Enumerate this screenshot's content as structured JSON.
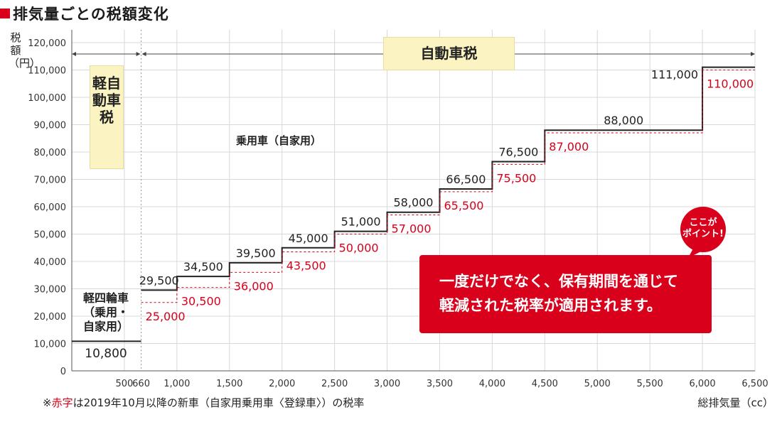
{
  "title": "排気量ごとの税額変化",
  "y_axis_label": "税額（円）",
  "x_axis_label": "総排気量（cc）",
  "footnote_prefix": "※",
  "footnote_red": "赤字",
  "footnote_rest": "は2019年10月以降の新車（自家用乗用車〈登録車〉）の税率",
  "kei_label": "軽自動車税",
  "auto_label": "自動車税",
  "passenger_label": "乗用車（自家用）",
  "mini_label": "軽四輪車（乗用・自家用）",
  "mini_label_lines": [
    "軽四輪車",
    "（乗用・",
    "自家用）"
  ],
  "mini_value": "10,800",
  "callout_lines": [
    "一度だけでなく、保有期間を通じて",
    "軽減された税率が適用されます。"
  ],
  "bubble_lines": [
    "ここが",
    "ポイント!"
  ],
  "colors": {
    "accent": "#d9001b",
    "old_line": "#222222",
    "new_line": "#d9001b",
    "label_box": "#fbf3c1",
    "grid": "#d8d8d8"
  },
  "chart_data": {
    "type": "line",
    "step": true,
    "xlim": [
      0,
      6500
    ],
    "ylim": [
      0,
      120000
    ],
    "x_ticks": [
      500,
      660,
      1000,
      1500,
      2000,
      2500,
      3000,
      3500,
      4000,
      4500,
      5000,
      5500,
      6000,
      6500
    ],
    "x_tick_labels": [
      "500",
      "660",
      "1,000",
      "1,500",
      "2,000",
      "2,500",
      "3,000",
      "3,500",
      "4,000",
      "4,500",
      "5,000",
      "5,500",
      "6,000",
      "6,500"
    ],
    "y_ticks": [
      0,
      10000,
      20000,
      30000,
      40000,
      50000,
      60000,
      70000,
      80000,
      90000,
      100000,
      110000,
      120000
    ],
    "y_tick_labels": [
      "0",
      "10,000",
      "20,000",
      "30,000",
      "40,000",
      "50,000",
      "60,000",
      "70,000",
      "80,000",
      "90,000",
      "100,000",
      "110,000",
      "120,000"
    ],
    "mini_vehicle": {
      "x_start": 0,
      "x_end": 660,
      "value": 10800
    },
    "series": [
      {
        "color": "#222222",
        "segments": [
          {
            "x_start": 660,
            "x_end": 1000,
            "value": 29500,
            "label": "29,500"
          },
          {
            "x_start": 1000,
            "x_end": 1500,
            "value": 34500,
            "label": "34,500"
          },
          {
            "x_start": 1500,
            "x_end": 2000,
            "value": 39500,
            "label": "39,500"
          },
          {
            "x_start": 2000,
            "x_end": 2500,
            "value": 45000,
            "label": "45,000"
          },
          {
            "x_start": 2500,
            "x_end": 3000,
            "value": 51000,
            "label": "51,000"
          },
          {
            "x_start": 3000,
            "x_end": 3500,
            "value": 58000,
            "label": "58,000"
          },
          {
            "x_start": 3500,
            "x_end": 4000,
            "value": 66500,
            "label": "66,500"
          },
          {
            "x_start": 4000,
            "x_end": 4500,
            "value": 76500,
            "label": "76,500"
          },
          {
            "x_start": 4500,
            "x_end": 6000,
            "value": 88000,
            "label": "88,000"
          },
          {
            "x_start": 6000,
            "x_end": 6500,
            "value": 111000,
            "label": "111,000"
          }
        ]
      },
      {
        "color": "#d9001b",
        "segments": [
          {
            "x_start": 660,
            "x_end": 1000,
            "value": 25000,
            "label": "25,000"
          },
          {
            "x_start": 1000,
            "x_end": 1500,
            "value": 30500,
            "label": "30,500"
          },
          {
            "x_start": 1500,
            "x_end": 2000,
            "value": 36000,
            "label": "36,000"
          },
          {
            "x_start": 2000,
            "x_end": 2500,
            "value": 43500,
            "label": "43,500"
          },
          {
            "x_start": 2500,
            "x_end": 3000,
            "value": 50000,
            "label": "50,000"
          },
          {
            "x_start": 3000,
            "x_end": 3500,
            "value": 57000,
            "label": "57,000"
          },
          {
            "x_start": 3500,
            "x_end": 4000,
            "value": 65500,
            "label": "65,500"
          },
          {
            "x_start": 4000,
            "x_end": 4500,
            "value": 75500,
            "label": "75,500"
          },
          {
            "x_start": 4500,
            "x_end": 6000,
            "value": 87000,
            "label": "87,000"
          },
          {
            "x_start": 6000,
            "x_end": 6500,
            "value": 110000,
            "label": "110,000"
          }
        ]
      }
    ]
  }
}
